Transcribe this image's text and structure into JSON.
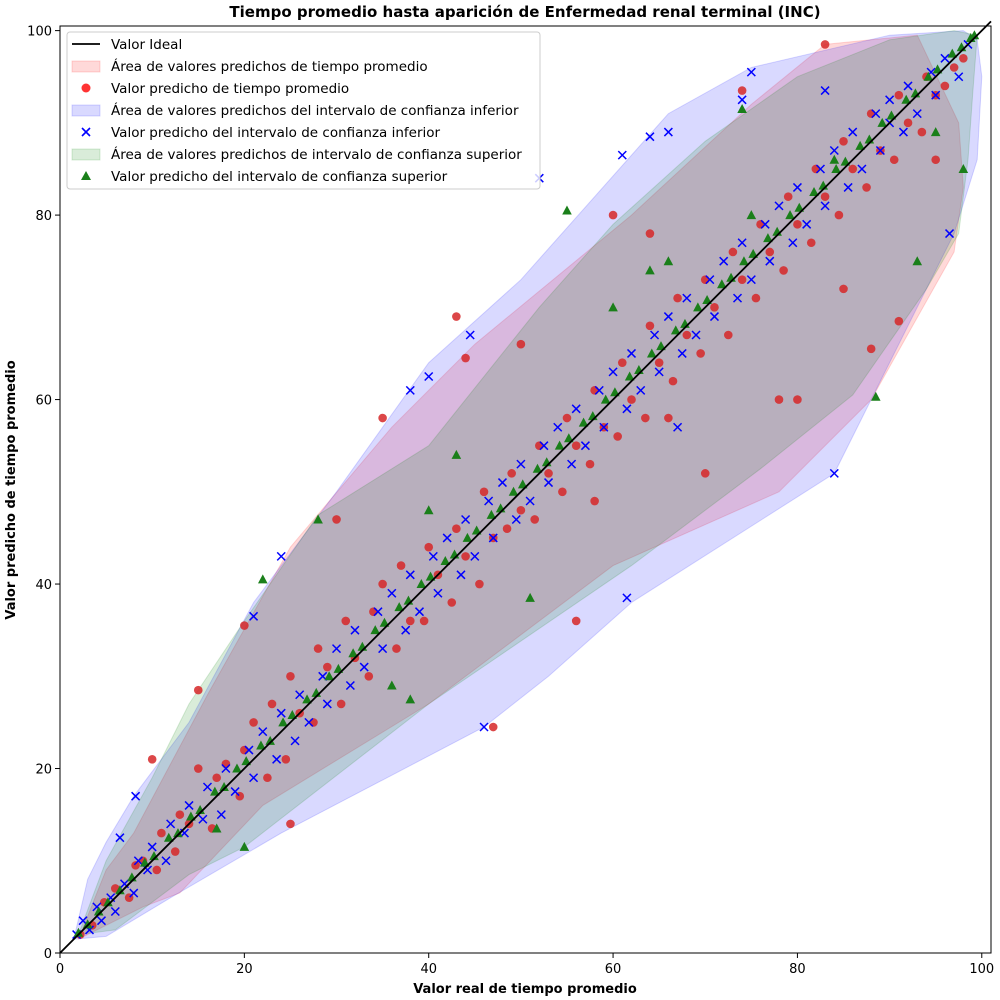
{
  "chart_data": {
    "type": "scatter",
    "title": "Tiempo promedio hasta aparición de Enfermedad renal terminal (INC)",
    "xlabel": "Valor real de tiempo promedio",
    "ylabel": "Valor predicho de tiempo promedio",
    "xlim": [
      0,
      101
    ],
    "ylim": [
      0,
      100.5
    ],
    "x_ticks": [
      0,
      20,
      40,
      60,
      80,
      100
    ],
    "y_ticks": [
      0,
      20,
      40,
      60,
      80,
      100
    ],
    "grid": false,
    "legend_position": "top-left",
    "ideal_line": {
      "name": "Valor Ideal",
      "color": "#000000",
      "points": [
        [
          0,
          0
        ],
        [
          101,
          101
        ]
      ]
    },
    "areas": [
      {
        "name": "Área de valores predichos de tiempo promedio",
        "color": "#ff0000",
        "opacity": 0.15,
        "polygon": [
          [
            2,
            1.5
          ],
          [
            9,
            5
          ],
          [
            13,
            6.5
          ],
          [
            22,
            16
          ],
          [
            40,
            27
          ],
          [
            60,
            42
          ],
          [
            78,
            50
          ],
          [
            88,
            60
          ],
          [
            97,
            76
          ],
          [
            98,
            83
          ],
          [
            97.5,
            90
          ],
          [
            93,
            99.5
          ],
          [
            88,
            99
          ],
          [
            83,
            98.5
          ],
          [
            75,
            92
          ],
          [
            62,
            80
          ],
          [
            45,
            66
          ],
          [
            36,
            57
          ],
          [
            25,
            44
          ],
          [
            16,
            28
          ],
          [
            8,
            13
          ],
          [
            5,
            9
          ]
        ]
      },
      {
        "name": "Área de valores predichos del intervalo de confianza inferior",
        "color": "#0000ff",
        "opacity": 0.15,
        "polygon": [
          [
            1.5,
            1.5
          ],
          [
            5,
            1.8
          ],
          [
            12,
            6
          ],
          [
            24,
            13
          ],
          [
            46,
            24.5
          ],
          [
            53,
            30
          ],
          [
            62,
            38
          ],
          [
            84,
            52
          ],
          [
            92,
            68
          ],
          [
            97,
            78
          ],
          [
            99.5,
            86
          ],
          [
            100,
            95
          ],
          [
            99.5,
            99
          ],
          [
            98,
            100
          ],
          [
            90,
            99.5
          ],
          [
            75,
            96
          ],
          [
            66,
            91
          ],
          [
            50,
            73
          ],
          [
            40,
            64
          ],
          [
            30,
            50
          ],
          [
            21,
            38
          ],
          [
            14,
            25
          ],
          [
            8,
            17
          ],
          [
            5,
            12
          ],
          [
            3,
            8
          ]
        ]
      },
      {
        "name": "Área de valores predichos de intervalo de confianza superior",
        "color": "#008000",
        "opacity": 0.15,
        "polygon": [
          [
            2,
            2
          ],
          [
            6,
            2.5
          ],
          [
            14,
            8.5
          ],
          [
            20,
            11.5
          ],
          [
            40,
            27
          ],
          [
            62,
            42
          ],
          [
            76,
            52.5
          ],
          [
            86,
            60.5
          ],
          [
            94,
            72
          ],
          [
            97.5,
            78
          ],
          [
            98.5,
            86
          ],
          [
            99,
            93
          ],
          [
            99.5,
            99.5
          ],
          [
            97,
            100
          ],
          [
            90,
            99
          ],
          [
            80,
            95
          ],
          [
            70,
            88
          ],
          [
            60,
            79
          ],
          [
            52,
            70
          ],
          [
            40,
            55
          ],
          [
            28,
            47.5
          ],
          [
            20,
            36
          ],
          [
            14,
            27
          ],
          [
            10,
            19
          ],
          [
            5,
            10
          ]
        ]
      }
    ],
    "series": [
      {
        "name": "Valor predicho de tiempo promedio",
        "color": "#d62728",
        "marker": "circle",
        "x": [
          2.2,
          3.5,
          4.8,
          6.0,
          7.5,
          8.2,
          9.0,
          10.5,
          11.0,
          12.5,
          13.0,
          14.0,
          15.0,
          16.5,
          17.0,
          18.0,
          19.5,
          20.0,
          21.0,
          22.5,
          23.0,
          24.5,
          25.0,
          26.0,
          27.5,
          28.0,
          29.0,
          30.5,
          31.0,
          32.0,
          33.5,
          34.0,
          35.0,
          36.5,
          37.0,
          38.0,
          39.5,
          40.0,
          41.0,
          42.5,
          43.0,
          44.0,
          45.5,
          46.0,
          47.0,
          48.5,
          49.0,
          50.0,
          51.5,
          52.0,
          53.0,
          54.5,
          55.0,
          56.0,
          57.5,
          58.0,
          59.0,
          60.5,
          61.0,
          62.0,
          63.5,
          64.0,
          65.0,
          66.5,
          67.0,
          68.0,
          69.5,
          70.0,
          71.0,
          72.5,
          73.0,
          74.0,
          75.5,
          76.0,
          77.0,
          78.5,
          79.0,
          80.0,
          81.5,
          82.0,
          83.0,
          84.5,
          85.0,
          86.0,
          87.5,
          88.0,
          89.0,
          90.5,
          91.0,
          92.0,
          93.5,
          94.0,
          95.0,
          96.0,
          97.0,
          98.0,
          15.0,
          20.0,
          30.0,
          43.0,
          47.0,
          56.0,
          66.0,
          78.0,
          83.0,
          91.0,
          74.0,
          80.0,
          88.0,
          95.0,
          60.0,
          35.0,
          25.0,
          50.0,
          70.0,
          85.0,
          10.0,
          44.0,
          58.0,
          64.0
        ],
        "y": [
          2.0,
          3.0,
          5.5,
          7.0,
          6.0,
          9.5,
          10.0,
          9.0,
          13.0,
          11.0,
          15.0,
          14.0,
          20.0,
          13.5,
          19.0,
          20.5,
          17.0,
          22.0,
          25.0,
          19.0,
          27.0,
          21.0,
          30.0,
          26.0,
          25.0,
          33.0,
          31.0,
          27.0,
          36.0,
          32.0,
          30.0,
          37.0,
          40.0,
          33.0,
          42.0,
          36.0,
          36.0,
          44.0,
          41.0,
          38.0,
          46.0,
          43.0,
          40.0,
          50.0,
          45.0,
          46.0,
          52.0,
          48.0,
          47.0,
          55.0,
          52.0,
          50.0,
          58.0,
          55.0,
          53.0,
          61.0,
          57.0,
          56.0,
          64.0,
          60.0,
          58.0,
          68.0,
          64.0,
          62.0,
          71.0,
          67.0,
          65.0,
          73.0,
          70.0,
          67.0,
          76.0,
          73.0,
          71.0,
          79.0,
          76.0,
          74.0,
          82.0,
          79.0,
          77.0,
          85.0,
          82.0,
          80.0,
          88.0,
          85.0,
          83.0,
          91.0,
          87.0,
          86.0,
          93.0,
          90.0,
          89.0,
          95.0,
          93.0,
          94.0,
          96.0,
          97.0,
          28.5,
          35.5,
          47.0,
          69.0,
          24.5,
          36.0,
          58.0,
          60.0,
          98.5,
          68.5,
          93.5,
          60.0,
          65.5,
          86.0,
          80.0,
          58.0,
          14.0,
          66.0,
          52.0,
          72.0,
          21.0,
          64.5,
          49.0,
          78.0
        ]
      },
      {
        "name": "Valor predicho del intervalo de confianza inferior",
        "color": "#0000ff",
        "marker": "x",
        "x": [
          1.8,
          2.5,
          3.2,
          4.0,
          4.5,
          5.5,
          6.0,
          7.0,
          8.0,
          8.5,
          9.5,
          10.0,
          11.5,
          12.0,
          13.5,
          14.0,
          15.5,
          16.0,
          17.5,
          18.0,
          19.0,
          20.5,
          21.0,
          22.0,
          23.5,
          24.0,
          25.5,
          26.0,
          27.0,
          28.5,
          29.0,
          30.0,
          31.5,
          32.0,
          33.0,
          34.5,
          35.0,
          36.0,
          37.5,
          38.0,
          39.0,
          40.5,
          41.0,
          42.0,
          43.5,
          44.0,
          45.0,
          46.5,
          47.0,
          48.0,
          49.5,
          50.0,
          51.0,
          52.5,
          53.0,
          54.0,
          55.5,
          56.0,
          57.0,
          58.5,
          59.0,
          60.0,
          61.5,
          62.0,
          63.0,
          64.5,
          65.0,
          66.0,
          67.5,
          68.0,
          69.0,
          70.5,
          71.0,
          72.0,
          73.5,
          74.0,
          75.0,
          76.5,
          77.0,
          78.0,
          79.5,
          80.0,
          81.0,
          82.5,
          83.0,
          84.0,
          85.5,
          86.0,
          87.0,
          88.5,
          89.0,
          90.0,
          91.5,
          92.0,
          93.0,
          94.5,
          95.0,
          96.0,
          97.5,
          98.5,
          6.5,
          8.2,
          21.0,
          24.0,
          38.0,
          46.0,
          61.0,
          61.5,
          74.0,
          84.0,
          52.0,
          64.0,
          66.0,
          75.0,
          83.0,
          90.0,
          96.5,
          40.0,
          44.5,
          67.0
        ],
        "y": [
          2.0,
          3.5,
          2.5,
          5.0,
          3.5,
          6.0,
          4.5,
          7.5,
          6.5,
          10.0,
          9.0,
          11.5,
          10.0,
          14.0,
          13.0,
          16.0,
          14.5,
          18.0,
          15.0,
          20.0,
          17.5,
          22.0,
          19.0,
          24.0,
          21.0,
          26.0,
          23.0,
          28.0,
          25.0,
          30.0,
          27.0,
          33.0,
          29.0,
          35.0,
          31.0,
          37.0,
          33.0,
          39.0,
          35.0,
          41.0,
          37.0,
          43.0,
          39.0,
          45.0,
          41.0,
          47.0,
          43.0,
          49.0,
          45.0,
          51.0,
          47.0,
          53.0,
          49.0,
          55.0,
          51.0,
          57.0,
          53.0,
          59.0,
          55.0,
          61.0,
          57.0,
          63.0,
          59.0,
          65.0,
          61.0,
          67.0,
          63.0,
          69.0,
          65.0,
          71.0,
          67.0,
          73.0,
          69.0,
          75.0,
          71.0,
          77.0,
          73.0,
          79.0,
          75.0,
          81.0,
          77.0,
          83.0,
          79.0,
          85.0,
          81.0,
          87.0,
          83.0,
          89.0,
          85.0,
          91.0,
          87.0,
          92.5,
          89.0,
          94.0,
          91.0,
          95.5,
          93.0,
          97.0,
          95.0,
          98.5,
          12.5,
          17.0,
          36.5,
          43.0,
          61.0,
          24.5,
          86.5,
          38.5,
          92.5,
          52.0,
          84.0,
          88.5,
          89.0,
          95.5,
          93.5,
          90.0,
          78.0,
          62.5,
          67.0,
          57.0
        ]
      },
      {
        "name": "Valor predicho del intervalo de confianza superior",
        "color": "#1a7f1a",
        "marker": "triangle",
        "x": [
          2.0,
          3.0,
          4.2,
          5.2,
          6.5,
          7.8,
          9.2,
          10.2,
          11.8,
          12.8,
          14.2,
          15.2,
          16.8,
          17.8,
          19.2,
          20.2,
          21.8,
          22.8,
          24.2,
          25.2,
          26.8,
          27.8,
          29.2,
          30.2,
          31.8,
          32.8,
          34.2,
          35.2,
          36.8,
          37.8,
          39.2,
          40.2,
          41.8,
          42.8,
          44.2,
          45.2,
          46.8,
          47.8,
          49.2,
          50.2,
          51.8,
          52.8,
          54.2,
          55.2,
          56.8,
          57.8,
          59.2,
          60.2,
          61.8,
          62.8,
          64.2,
          65.2,
          66.8,
          67.8,
          69.2,
          70.2,
          71.8,
          72.8,
          74.2,
          75.2,
          76.8,
          77.8,
          79.2,
          80.2,
          81.8,
          82.8,
          84.2,
          85.2,
          86.8,
          87.8,
          89.2,
          90.2,
          91.8,
          92.8,
          94.2,
          95.2,
          96.8,
          97.8,
          98.8,
          99.2,
          17.0,
          20.0,
          22.0,
          28.0,
          36.0,
          38.0,
          43.0,
          55.0,
          60.0,
          64.0,
          66.0,
          74.0,
          75.0,
          88.5,
          93.0,
          98.0,
          40.0,
          51.0,
          84.0,
          95.0
        ],
        "y": [
          2.2,
          3.1,
          4.5,
          5.5,
          6.8,
          8.2,
          9.8,
          10.5,
          12.5,
          13.0,
          14.8,
          15.5,
          17.5,
          18.0,
          20.0,
          20.8,
          22.5,
          23.0,
          25.0,
          25.8,
          27.5,
          28.2,
          30.0,
          30.8,
          32.5,
          33.2,
          35.0,
          35.8,
          37.5,
          38.2,
          40.0,
          40.8,
          42.5,
          43.2,
          45.0,
          45.8,
          47.5,
          48.2,
          50.0,
          50.8,
          52.5,
          53.2,
          55.0,
          55.8,
          57.5,
          58.2,
          60.0,
          60.8,
          62.5,
          63.2,
          65.0,
          65.8,
          67.5,
          68.2,
          70.0,
          70.8,
          72.5,
          73.2,
          75.0,
          75.8,
          77.5,
          78.2,
          80.0,
          80.8,
          82.5,
          83.2,
          85.0,
          85.8,
          87.5,
          88.2,
          90.0,
          90.8,
          92.5,
          93.2,
          95.0,
          95.8,
          97.5,
          98.2,
          99.2,
          99.5,
          13.5,
          11.5,
          40.5,
          47.0,
          29.0,
          27.5,
          54.0,
          80.5,
          70.0,
          74.0,
          75.0,
          91.5,
          80.0,
          60.3,
          75.0,
          85.0,
          48.0,
          38.5,
          86.0,
          89.0
        ]
      }
    ]
  }
}
